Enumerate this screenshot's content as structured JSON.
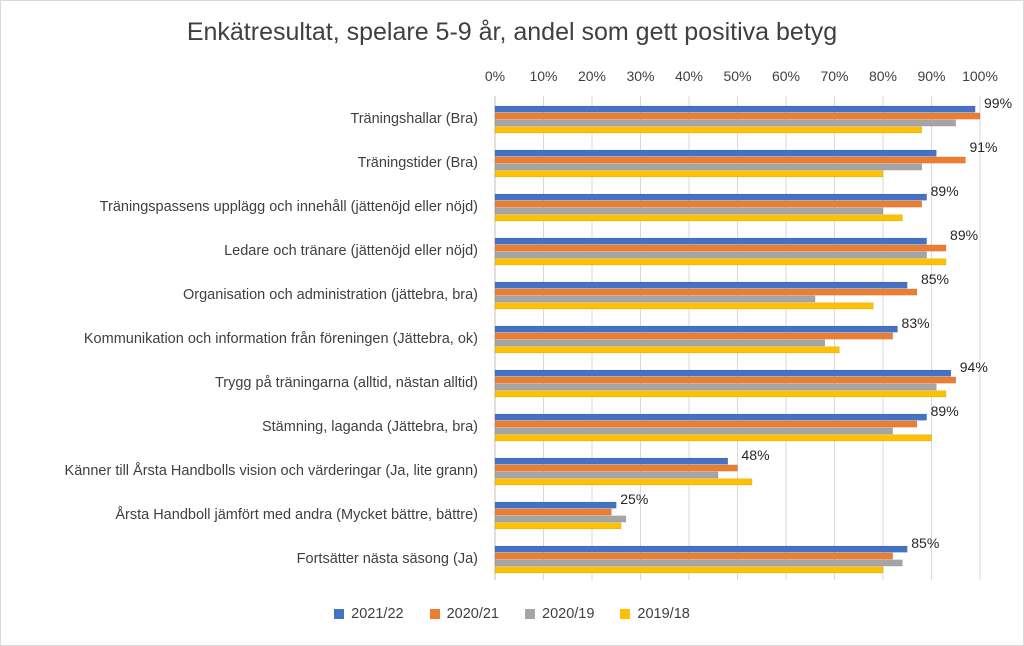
{
  "chart_data": {
    "type": "bar",
    "orientation": "horizontal",
    "title": "Enkätresultat, spelare 5-9 år, andel som gett positiva betyg",
    "xlim": [
      0,
      100
    ],
    "x_ticks": [
      "0%",
      "10%",
      "20%",
      "30%",
      "40%",
      "50%",
      "60%",
      "70%",
      "80%",
      "90%",
      "100%"
    ],
    "x_axis_position": "top",
    "grid": true,
    "legend_position": "bottom",
    "categories": [
      "Träningshallar (Bra)",
      "Träningstider (Bra)",
      "Träningspassens upplägg och innehåll (jättenöjd eller nöjd)",
      "Ledare och tränare (jättenöjd eller nöjd)",
      "Organisation och administration (jättebra, bra)",
      "Kommunikation och information från föreningen (Jättebra, ok)",
      "Trygg på träningarna (alltid, nästan alltid)",
      "Stämning, laganda (Jättebra, bra)",
      "Känner till Årsta Handbolls vision och värderingar (Ja, lite grann)",
      "Årsta Handboll jämfört med andra (Mycket bättre, bättre)",
      "Fortsätter nästa säsong (Ja)"
    ],
    "data_labels": [
      "99%",
      "91%",
      "89%",
      "89%",
      "85%",
      "83%",
      "94%",
      "89%",
      "48%",
      "25%",
      "85%"
    ],
    "series": [
      {
        "name": "2021/22",
        "color": "#4472c4",
        "values": [
          99,
          91,
          89,
          89,
          85,
          83,
          94,
          89,
          48,
          25,
          85
        ]
      },
      {
        "name": "2020/21",
        "color": "#ed7d31",
        "values": [
          100,
          97,
          88,
          93,
          87,
          82,
          95,
          87,
          50,
          24,
          82
        ]
      },
      {
        "name": "2020/19",
        "color": "#a5a5a5",
        "values": [
          95,
          88,
          80,
          89,
          66,
          68,
          91,
          82,
          46,
          27,
          84
        ]
      },
      {
        "name": "2019/18",
        "color": "#ffc000",
        "values": [
          88,
          80,
          84,
          93,
          78,
          71,
          93,
          90,
          53,
          26,
          80
        ]
      }
    ]
  }
}
